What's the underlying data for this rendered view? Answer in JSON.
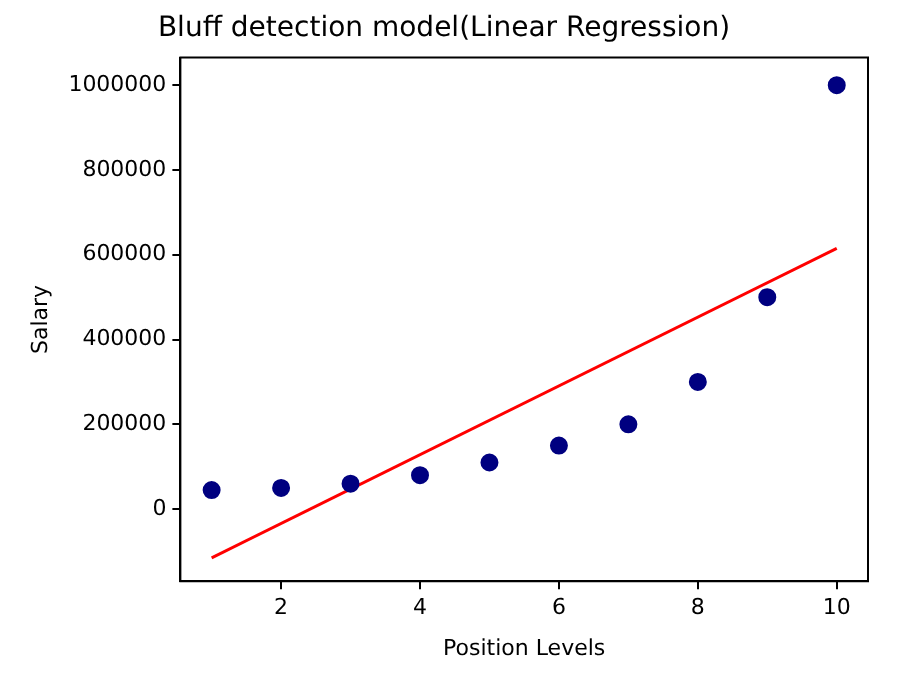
{
  "chart_data": {
    "type": "scatter",
    "title": "Bluff detection model(Linear Regression)",
    "xlabel": "Position Levels",
    "ylabel": "Salary",
    "xlim": [
      0.55,
      10.45
    ],
    "xticks": [
      2,
      4,
      6,
      8,
      10
    ],
    "ylim": [
      -170000,
      1065000
    ],
    "yticks": [
      0,
      200000,
      400000,
      600000,
      800000,
      1000000
    ],
    "grid": false,
    "legend": false,
    "marker": "circle",
    "series": [
      {
        "type": "scatter",
        "color": "#000080",
        "x": [
          1,
          2,
          3,
          4,
          5,
          6,
          7,
          8,
          9,
          10
        ],
        "values": [
          45000,
          50000,
          60000,
          80000,
          110000,
          150000,
          200000,
          300000,
          500000,
          1000000
        ]
      },
      {
        "type": "line",
        "color": "#ff0000",
        "marker": "none",
        "line_style": "solid",
        "x": [
          1,
          10
        ],
        "values": [
          -115000,
          615000
        ]
      }
    ]
  }
}
